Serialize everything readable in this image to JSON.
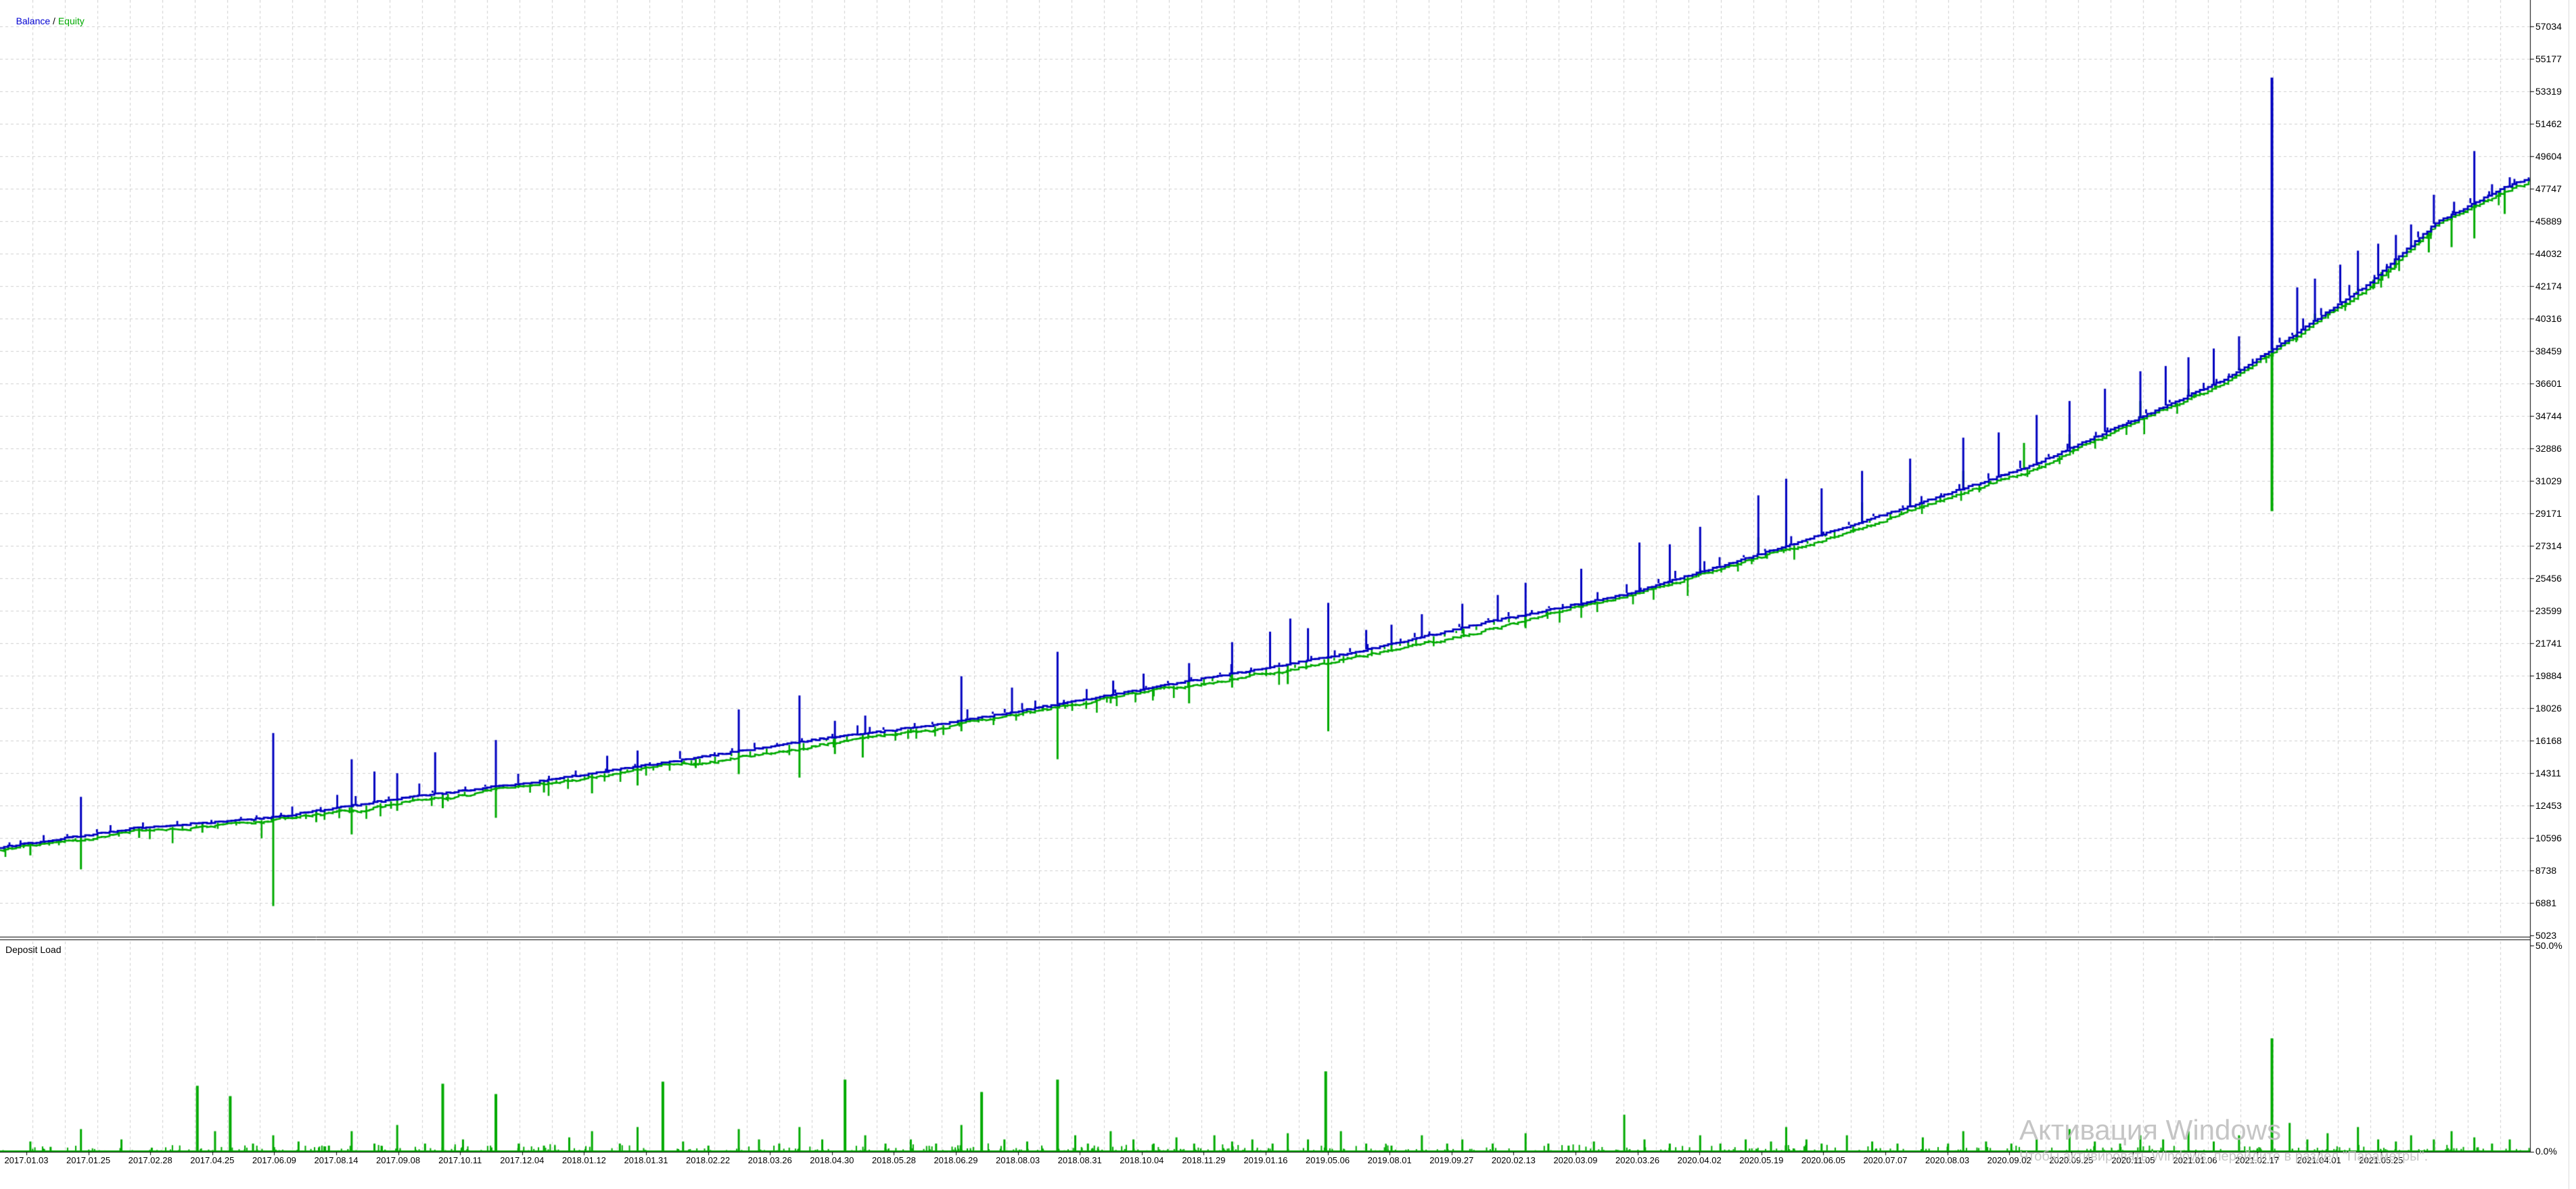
{
  "legend": {
    "balance": "Balance",
    "separator": " / ",
    "equity": "Equity"
  },
  "deposit_panel": {
    "title": "Deposit Load",
    "max_label": "50.0%",
    "min_label": "0.0%"
  },
  "watermark": {
    "title": "Активация Windows",
    "subtitle": "Чтобы активировать Windows, перейдите в раздел \"Параметры\"."
  },
  "colors": {
    "balance": "#0000c0",
    "equity": "#00aa00",
    "grid": "#cfcfcf",
    "axis": "#000000",
    "background": "#ffffff"
  },
  "chart_data": [
    {
      "type": "line",
      "title": "Balance / Equity",
      "legend_position": "top-left",
      "grid": "dashed",
      "ylim": [
        5023,
        57034
      ],
      "y_ticks": [
        57034,
        55177,
        53319,
        51462,
        49604,
        47747,
        45889,
        44032,
        42174,
        40316,
        38459,
        36601,
        34744,
        32886,
        31029,
        29171,
        27314,
        25456,
        23599,
        21741,
        19884,
        18026,
        16168,
        14311,
        12453,
        10596,
        8738,
        6881,
        5023
      ],
      "x_ticks": [
        "2017.01.03",
        "2017.01.25",
        "2017.02.28",
        "2017.04.25",
        "2017.06.09",
        "2017.08.14",
        "2017.09.08",
        "2017.10.11",
        "2017.12.04",
        "2018.01.12",
        "2018.01.31",
        "2018.02.22",
        "2018.03.26",
        "2018.04.30",
        "2018.05.28",
        "2018.06.29",
        "2018.08.03",
        "2018.08.31",
        "2018.10.04",
        "2018.11.29",
        "2019.01.16",
        "2019.05.06",
        "2019.08.01",
        "2019.09.27",
        "2020.02.13",
        "2020.03.09",
        "2020.03.26",
        "2020.04.02",
        "2020.05.19",
        "2020.06.05",
        "2020.07.07",
        "2020.08.03",
        "2020.09.02",
        "2020.09.25",
        "2020.11.05",
        "2021.01.06",
        "2021.02.17",
        "2021.04.01",
        "2021.05.25"
      ],
      "series": [
        {
          "name": "Balance",
          "color": "#0000c0",
          "anchors": [
            [
              0,
              10050
            ],
            [
              0.053,
              11150
            ],
            [
              0.107,
              11750
            ],
            [
              0.16,
              12900
            ],
            [
              0.214,
              13850
            ],
            [
              0.267,
              15000
            ],
            [
              0.321,
              16200
            ],
            [
              0.374,
              17150
            ],
            [
              0.428,
              18500
            ],
            [
              0.481,
              19850
            ],
            [
              0.535,
              21200
            ],
            [
              0.588,
              22950
            ],
            [
              0.642,
              24500
            ],
            [
              0.695,
              26800
            ],
            [
              0.749,
              29300
            ],
            [
              0.802,
              31850
            ],
            [
              0.829,
              33600
            ],
            [
              0.856,
              35300
            ],
            [
              0.882,
              37050
            ],
            [
              0.909,
              39600
            ],
            [
              0.936,
              42300
            ],
            [
              0.963,
              45800
            ],
            [
              0.988,
              47700
            ],
            [
              1,
              48400
            ]
          ]
        },
        {
          "name": "Equity",
          "color": "#00aa00"
        }
      ],
      "balance_spikes_up": [
        [
          0.032,
          12950
        ],
        [
          0.108,
          16600
        ],
        [
          0.139,
          15100
        ],
        [
          0.148,
          14400
        ],
        [
          0.157,
          14300
        ],
        [
          0.172,
          15500
        ],
        [
          0.196,
          16200
        ],
        [
          0.24,
          15300
        ],
        [
          0.252,
          15600
        ],
        [
          0.292,
          17950
        ],
        [
          0.316,
          18750
        ],
        [
          0.33,
          17300
        ],
        [
          0.342,
          17600
        ],
        [
          0.38,
          19850
        ],
        [
          0.4,
          19200
        ],
        [
          0.418,
          21250
        ],
        [
          0.44,
          19600
        ],
        [
          0.452,
          20000
        ],
        [
          0.47,
          20600
        ],
        [
          0.487,
          21800
        ],
        [
          0.502,
          22400
        ],
        [
          0.51,
          23150
        ],
        [
          0.517,
          22600
        ],
        [
          0.525,
          24050
        ],
        [
          0.54,
          22500
        ],
        [
          0.55,
          22800
        ],
        [
          0.562,
          23400
        ],
        [
          0.578,
          24000
        ],
        [
          0.592,
          24500
        ],
        [
          0.603,
          25200
        ],
        [
          0.625,
          26000
        ],
        [
          0.648,
          27500
        ],
        [
          0.66,
          27400
        ],
        [
          0.672,
          28400
        ],
        [
          0.695,
          30200
        ],
        [
          0.706,
          31150
        ],
        [
          0.72,
          30600
        ],
        [
          0.736,
          31600
        ],
        [
          0.755,
          32300
        ],
        [
          0.776,
          33500
        ],
        [
          0.79,
          33800
        ],
        [
          0.805,
          34800
        ],
        [
          0.818,
          35600
        ],
        [
          0.832,
          36300
        ],
        [
          0.846,
          37300
        ],
        [
          0.856,
          37600
        ],
        [
          0.865,
          38100
        ],
        [
          0.875,
          38600
        ],
        [
          0.885,
          39300
        ],
        [
          0.898,
          54100
        ],
        [
          0.908,
          42100
        ],
        [
          0.915,
          42600
        ],
        [
          0.925,
          43400
        ],
        [
          0.932,
          44200
        ],
        [
          0.94,
          44600
        ],
        [
          0.947,
          45100
        ],
        [
          0.953,
          45700
        ],
        [
          0.962,
          47400
        ],
        [
          0.97,
          47000
        ],
        [
          0.978,
          49900
        ],
        [
          0.985,
          48000
        ],
        [
          0.992,
          48400
        ]
      ],
      "equity_dips_down": [
        [
          0.012,
          9600
        ],
        [
          0.032,
          8800
        ],
        [
          0.055,
          10600
        ],
        [
          0.08,
          10900
        ],
        [
          0.108,
          6700
        ],
        [
          0.125,
          11500
        ],
        [
          0.139,
          10800
        ],
        [
          0.157,
          12150
        ],
        [
          0.175,
          12300
        ],
        [
          0.196,
          11750
        ],
        [
          0.215,
          13200
        ],
        [
          0.234,
          13150
        ],
        [
          0.252,
          13600
        ],
        [
          0.275,
          14600
        ],
        [
          0.292,
          14250
        ],
        [
          0.316,
          14050
        ],
        [
          0.33,
          15400
        ],
        [
          0.341,
          15200
        ],
        [
          0.36,
          16600
        ],
        [
          0.38,
          16700
        ],
        [
          0.4,
          17700
        ],
        [
          0.418,
          15100
        ],
        [
          0.439,
          18300
        ],
        [
          0.456,
          18700
        ],
        [
          0.47,
          18300
        ],
        [
          0.487,
          19200
        ],
        [
          0.509,
          19400
        ],
        [
          0.525,
          16700
        ],
        [
          0.55,
          21300
        ],
        [
          0.578,
          22300
        ],
        [
          0.603,
          22600
        ],
        [
          0.625,
          24100
        ],
        [
          0.648,
          24800
        ],
        [
          0.672,
          26000
        ],
        [
          0.695,
          27800
        ],
        [
          0.706,
          28800
        ],
        [
          0.736,
          29800
        ],
        [
          0.755,
          30900
        ],
        [
          0.776,
          31600
        ],
        [
          0.8,
          33200
        ],
        [
          0.818,
          33700
        ],
        [
          0.846,
          35600
        ],
        [
          0.865,
          36300
        ],
        [
          0.885,
          37500
        ],
        [
          0.898,
          29300
        ],
        [
          0.915,
          40600
        ],
        [
          0.932,
          42100
        ],
        [
          0.947,
          43200
        ],
        [
          0.96,
          44100
        ],
        [
          0.969,
          44400
        ],
        [
          0.978,
          44900
        ],
        [
          0.99,
          46300
        ]
      ]
    },
    {
      "type": "bar",
      "title": "Deposit Load",
      "color": "#00aa00",
      "ylim_pct": [
        0,
        50
      ],
      "y_tick_labels": [
        "50.0%",
        "0.0%"
      ],
      "bars": [
        [
          0.012,
          2.5
        ],
        [
          0.02,
          1.2
        ],
        [
          0.032,
          5.5
        ],
        [
          0.048,
          3
        ],
        [
          0.06,
          1
        ],
        [
          0.078,
          16
        ],
        [
          0.085,
          5
        ],
        [
          0.091,
          13.5
        ],
        [
          0.1,
          2
        ],
        [
          0.108,
          4
        ],
        [
          0.118,
          2.5
        ],
        [
          0.13,
          1.5
        ],
        [
          0.139,
          5
        ],
        [
          0.148,
          2
        ],
        [
          0.157,
          6.5
        ],
        [
          0.168,
          2
        ],
        [
          0.175,
          16.5
        ],
        [
          0.183,
          3
        ],
        [
          0.196,
          14
        ],
        [
          0.205,
          2
        ],
        [
          0.215,
          1.5
        ],
        [
          0.225,
          3.5
        ],
        [
          0.234,
          5
        ],
        [
          0.245,
          2
        ],
        [
          0.252,
          6
        ],
        [
          0.262,
          17
        ],
        [
          0.27,
          2.5
        ],
        [
          0.28,
          1.5
        ],
        [
          0.292,
          5.5
        ],
        [
          0.3,
          3
        ],
        [
          0.308,
          2
        ],
        [
          0.316,
          6
        ],
        [
          0.325,
          3
        ],
        [
          0.334,
          17.5
        ],
        [
          0.342,
          4
        ],
        [
          0.35,
          2
        ],
        [
          0.36,
          3
        ],
        [
          0.37,
          2
        ],
        [
          0.38,
          6.5
        ],
        [
          0.388,
          14.5
        ],
        [
          0.397,
          3
        ],
        [
          0.406,
          2.5
        ],
        [
          0.418,
          17.5
        ],
        [
          0.425,
          4
        ],
        [
          0.43,
          2
        ],
        [
          0.439,
          5
        ],
        [
          0.448,
          3
        ],
        [
          0.456,
          2
        ],
        [
          0.465,
          3.5
        ],
        [
          0.472,
          2
        ],
        [
          0.48,
          4
        ],
        [
          0.487,
          2.5
        ],
        [
          0.495,
          3
        ],
        [
          0.503,
          2
        ],
        [
          0.509,
          4.5
        ],
        [
          0.517,
          3
        ],
        [
          0.524,
          19.5
        ],
        [
          0.53,
          5
        ],
        [
          0.54,
          2
        ],
        [
          0.55,
          1.5
        ],
        [
          0.562,
          4
        ],
        [
          0.572,
          2
        ],
        [
          0.578,
          3
        ],
        [
          0.59,
          2
        ],
        [
          0.603,
          4.5
        ],
        [
          0.612,
          2
        ],
        [
          0.62,
          1.5
        ],
        [
          0.63,
          2.5
        ],
        [
          0.642,
          9
        ],
        [
          0.65,
          3
        ],
        [
          0.66,
          2
        ],
        [
          0.672,
          4
        ],
        [
          0.68,
          2
        ],
        [
          0.69,
          3
        ],
        [
          0.7,
          2.5
        ],
        [
          0.706,
          6
        ],
        [
          0.714,
          3
        ],
        [
          0.72,
          2
        ],
        [
          0.73,
          4
        ],
        [
          0.74,
          2.5
        ],
        [
          0.75,
          2
        ],
        [
          0.76,
          3.5
        ],
        [
          0.77,
          2
        ],
        [
          0.776,
          5
        ],
        [
          0.785,
          2.5
        ],
        [
          0.795,
          2
        ],
        [
          0.805,
          3
        ],
        [
          0.818,
          5.5
        ],
        [
          0.828,
          2.5
        ],
        [
          0.838,
          2
        ],
        [
          0.846,
          4
        ],
        [
          0.855,
          3
        ],
        [
          0.865,
          5
        ],
        [
          0.875,
          2.5
        ],
        [
          0.885,
          4
        ],
        [
          0.898,
          27.5
        ],
        [
          0.905,
          7
        ],
        [
          0.912,
          3
        ],
        [
          0.92,
          4.5
        ],
        [
          0.932,
          6
        ],
        [
          0.94,
          3
        ],
        [
          0.947,
          2.5
        ],
        [
          0.953,
          4
        ],
        [
          0.962,
          3
        ],
        [
          0.969,
          5
        ],
        [
          0.978,
          3.5
        ],
        [
          0.985,
          2
        ],
        [
          0.992,
          3
        ]
      ],
      "noise": {
        "count": 760,
        "max_pct": 2.0
      }
    }
  ]
}
